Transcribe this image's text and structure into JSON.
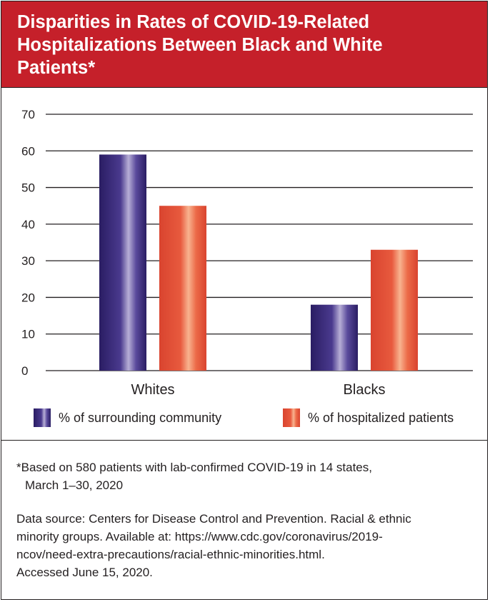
{
  "header": {
    "title": "Disparities in Rates of COVID-19-Related Hospitalizations Between Black and White Patients*"
  },
  "colors": {
    "header_bg": "#c5202a",
    "community": "#3b2a78",
    "hospitalized": "#e8503a"
  },
  "chart_data": {
    "type": "bar",
    "title": "Disparities in Rates of COVID-19-Related Hospitalizations Between Black and White Patients*",
    "xlabel": "",
    "ylabel": "",
    "categories": [
      "Whites",
      "Blacks"
    ],
    "series": [
      {
        "name": "% of surrounding community",
        "values": [
          59,
          18
        ]
      },
      {
        "name": "% of hospitalized patients",
        "values": [
          45,
          33
        ]
      }
    ],
    "ylim": [
      0,
      70
    ],
    "yticks": [
      "0",
      "10",
      "20",
      "30",
      "40",
      "50",
      "60",
      "70"
    ],
    "grid": true,
    "legend": "bottom"
  },
  "notes": {
    "footnote_line1": "*Based on 580 patients with lab-confirmed COVID-19 in 14 states,",
    "footnote_line2": "March 1–30, 2020",
    "source_line1": "Data source: Centers for Disease Control and Prevention. Racial & ethnic",
    "source_line2": "minority groups. Available at: https://www.cdc.gov/coronavirus/2019-",
    "source_line3": "ncov/need-extra-precautions/racial-ethnic-minorities.html.",
    "source_line4": "Accessed June 15, 2020."
  }
}
